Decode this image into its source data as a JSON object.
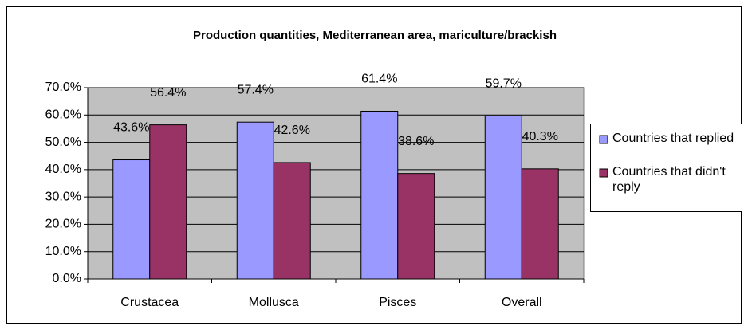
{
  "chart_data": {
    "type": "bar",
    "title": "Production quantities, Mediterranean area, mariculture/brackish",
    "categories": [
      "Crustacea",
      "Mollusca",
      "Pisces",
      "Overall"
    ],
    "series": [
      {
        "name": "Countries that replied",
        "color": "#9999ff",
        "values": [
          43.6,
          57.4,
          61.4,
          59.7
        ],
        "value_labels": [
          "43.6%",
          "57.4%",
          "61.4%",
          "59.7%"
        ]
      },
      {
        "name": "Countries that didn't reply",
        "color": "#993366",
        "values": [
          56.4,
          42.6,
          38.6,
          40.3
        ],
        "value_labels": [
          "56.4%",
          "42.6%",
          "38.6%",
          "40.3%"
        ]
      }
    ],
    "ylim": [
      0,
      70
    ],
    "yticks": [
      {
        "value": 0,
        "label": "0.0%"
      },
      {
        "value": 10,
        "label": "10.0%"
      },
      {
        "value": 20,
        "label": "20.0%"
      },
      {
        "value": 30,
        "label": "30.0%"
      },
      {
        "value": 40,
        "label": "40.0%"
      },
      {
        "value": 50,
        "label": "50.0%"
      },
      {
        "value": 60,
        "label": "60.0%"
      },
      {
        "value": 70,
        "label": "70.0%"
      }
    ],
    "grid": true,
    "legend": "right",
    "plot_background": "#c0c0c0"
  }
}
